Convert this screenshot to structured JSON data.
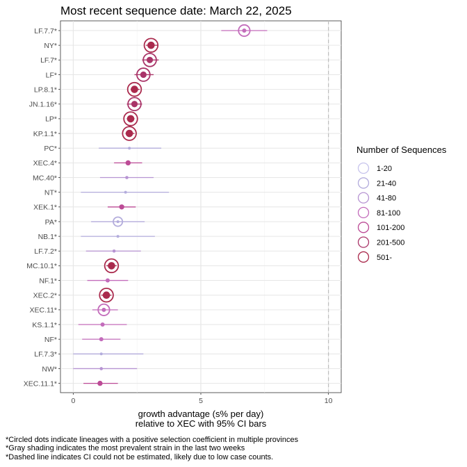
{
  "chart_data": {
    "type": "scatter",
    "title": "Most recent sequence date: March 22, 2025",
    "xlabel_line1": "growth advantage (s% per day)",
    "xlabel_line2": "relative to  XEC  with 95% CI bars",
    "xlim": [
      -0.5,
      10.5
    ],
    "x_ticks": [
      0,
      5,
      10
    ],
    "dashed_reference_x": 10,
    "grid": true,
    "legend_position": "right",
    "legend": {
      "title": "Number of Sequences",
      "entries": [
        {
          "label": "1-20",
          "color": "#c6c3ec"
        },
        {
          "label": "21-40",
          "color": "#b3acdc"
        },
        {
          "label": "41-80",
          "color": "#b693d2"
        },
        {
          "label": "81-100",
          "color": "#c36cbb"
        },
        {
          "label": "101-200",
          "color": "#bc4b96"
        },
        {
          "label": "201-500",
          "color": "#a93468"
        },
        {
          "label": "501-",
          "color": "#aa2a4d"
        }
      ]
    },
    "lineages": [
      {
        "name": "LF.7.7*",
        "x": 6.7,
        "lo": 5.8,
        "hi": 7.6,
        "bin": 3,
        "circled": true
      },
      {
        "name": "NY*",
        "x": 3.05,
        "lo": 2.85,
        "hi": 3.3,
        "bin": 6,
        "circled": true
      },
      {
        "name": "LF.7*",
        "x": 3.0,
        "lo": 2.7,
        "hi": 3.35,
        "bin": 5,
        "circled": true
      },
      {
        "name": "LF*",
        "x": 2.75,
        "lo": 2.4,
        "hi": 3.15,
        "bin": 5,
        "circled": true
      },
      {
        "name": "LP.8.1*",
        "x": 2.4,
        "lo": 2.25,
        "hi": 2.6,
        "bin": 6,
        "circled": true
      },
      {
        "name": "JN.1.16*",
        "x": 2.4,
        "lo": 2.1,
        "hi": 2.7,
        "bin": 5,
        "circled": true
      },
      {
        "name": "LP*",
        "x": 2.25,
        "lo": 2.1,
        "hi": 2.4,
        "bin": 6,
        "circled": true
      },
      {
        "name": "KP.1.1*",
        "x": 2.2,
        "lo": 2.05,
        "hi": 2.4,
        "bin": 6,
        "circled": true
      },
      {
        "name": "PC*",
        "x": 2.2,
        "lo": 1.0,
        "hi": 3.45,
        "bin": 1,
        "circled": false
      },
      {
        "name": "XEC.4*",
        "x": 2.15,
        "lo": 1.6,
        "hi": 2.7,
        "bin": 4,
        "circled": false
      },
      {
        "name": "MC.40*",
        "x": 2.1,
        "lo": 1.05,
        "hi": 3.15,
        "bin": 2,
        "circled": false
      },
      {
        "name": "NT*",
        "x": 2.05,
        "lo": 0.3,
        "hi": 3.75,
        "bin": 1,
        "circled": false
      },
      {
        "name": "XEK.1*",
        "x": 1.9,
        "lo": 1.35,
        "hi": 2.45,
        "bin": 4,
        "circled": false
      },
      {
        "name": "PA*",
        "x": 1.75,
        "lo": 0.7,
        "hi": 2.8,
        "bin": 1,
        "circled": true
      },
      {
        "name": "NB.1*",
        "x": 1.75,
        "lo": 0.3,
        "hi": 3.2,
        "bin": 1,
        "circled": false
      },
      {
        "name": "LF.7.2*",
        "x": 1.6,
        "lo": 0.5,
        "hi": 2.65,
        "bin": 2,
        "circled": false
      },
      {
        "name": "MC.10.1*",
        "x": 1.5,
        "lo": 1.3,
        "hi": 1.7,
        "bin": 6,
        "circled": true
      },
      {
        "name": "NF.1*",
        "x": 1.35,
        "lo": 0.55,
        "hi": 2.15,
        "bin": 3,
        "circled": false
      },
      {
        "name": "XEC.2*",
        "x": 1.3,
        "lo": 1.1,
        "hi": 1.5,
        "bin": 6,
        "circled": true
      },
      {
        "name": "XEC.11*",
        "x": 1.2,
        "lo": 0.75,
        "hi": 1.75,
        "bin": 3,
        "circled": true
      },
      {
        "name": "KS.1.1*",
        "x": 1.15,
        "lo": 0.2,
        "hi": 2.1,
        "bin": 3,
        "circled": false
      },
      {
        "name": "NF*",
        "x": 1.1,
        "lo": 0.35,
        "hi": 1.85,
        "bin": 3,
        "circled": false
      },
      {
        "name": "LF.7.3*",
        "x": 1.1,
        "lo": 0.0,
        "hi": 2.75,
        "bin": 1,
        "circled": false
      },
      {
        "name": "NW*",
        "x": 1.1,
        "lo": 0.0,
        "hi": 2.5,
        "bin": 2,
        "circled": false
      },
      {
        "name": "XEC.11.1*",
        "x": 1.05,
        "lo": 0.4,
        "hi": 1.75,
        "bin": 4,
        "circled": false
      }
    ],
    "footnotes": [
      "*Circled dots indicate lineages with a positive selection coefficient in multiple provinces",
      "*Gray shading indicates the most prevalent strain in the last two weeks",
      "*Dashed line indicates CI could not be estimated, likely due to low case counts."
    ]
  }
}
